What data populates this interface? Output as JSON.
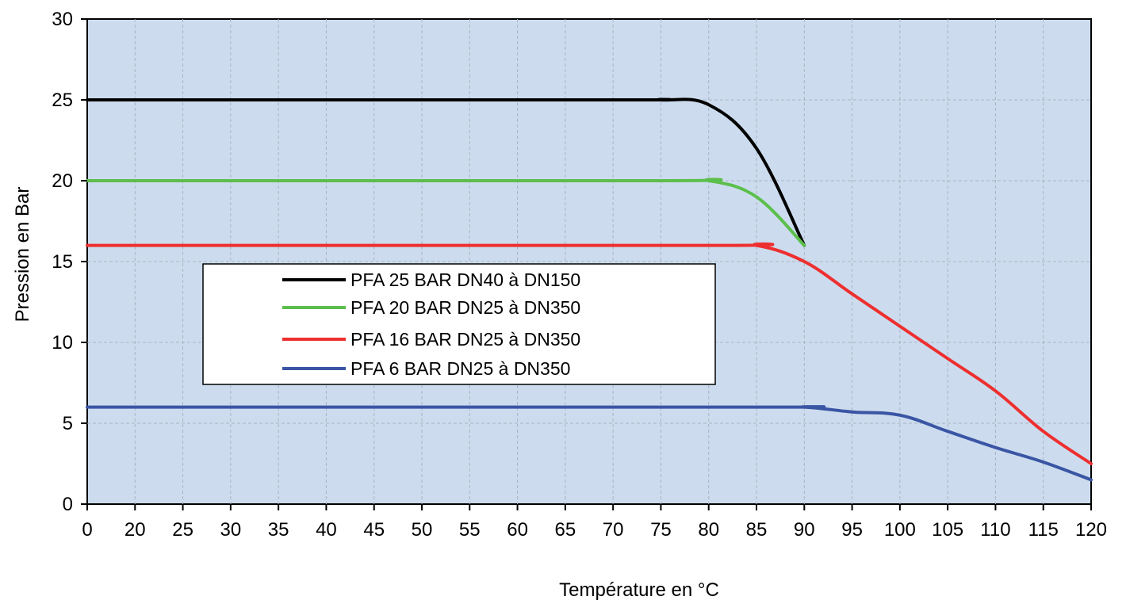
{
  "chart_data": {
    "type": "line",
    "title": "",
    "xlabel": "Température en °C",
    "ylabel": "Pression en Bar",
    "x_ticks": [
      "0",
      "20",
      "25",
      "30",
      "35",
      "40",
      "45",
      "50",
      "55",
      "60",
      "65",
      "70",
      "75",
      "80",
      "85",
      "90",
      "95",
      "100",
      "105",
      "110",
      "115",
      "120"
    ],
    "y_ticks": [
      0,
      5,
      10,
      15,
      20,
      25,
      30
    ],
    "ylim": [
      0,
      30
    ],
    "grid": "on (dashed, vertical and horizontal)",
    "plot_background": "#ccdcee",
    "legend_position": "center-left",
    "series": [
      {
        "name": "PFA 25 BAR DN40 à DN150",
        "color": "#000000",
        "points": [
          [
            "0",
            25
          ],
          [
            "70",
            25
          ],
          [
            "75",
            25
          ],
          [
            "80",
            24.7
          ],
          [
            "85",
            22
          ],
          [
            "90",
            16
          ]
        ]
      },
      {
        "name": "PFA 20 BAR DN25 à DN350",
        "color": "#5cbf4c",
        "points": [
          [
            "0",
            20
          ],
          [
            "75",
            20
          ],
          [
            "80",
            20
          ],
          [
            "85",
            19
          ],
          [
            "90",
            16
          ]
        ]
      },
      {
        "name": "PFA 16 BAR DN25 à DN350",
        "color": "#ee2f2f",
        "points": [
          [
            "0",
            16
          ],
          [
            "80",
            16
          ],
          [
            "85",
            16
          ],
          [
            "90",
            15
          ],
          [
            "95",
            13
          ],
          [
            "100",
            11
          ],
          [
            "105",
            9
          ],
          [
            "110",
            7
          ],
          [
            "115",
            4.5
          ],
          [
            "120",
            2.5
          ]
        ]
      },
      {
        "name": "PFA 6 BAR DN25 à DN350",
        "color": "#3a55a4",
        "points": [
          [
            "0",
            6
          ],
          [
            "85",
            6
          ],
          [
            "90",
            6
          ],
          [
            "95",
            5.7
          ],
          [
            "100",
            5.5
          ],
          [
            "105",
            4.5
          ],
          [
            "110",
            3.5
          ],
          [
            "115",
            2.6
          ],
          [
            "120",
            1.5
          ]
        ]
      }
    ]
  }
}
